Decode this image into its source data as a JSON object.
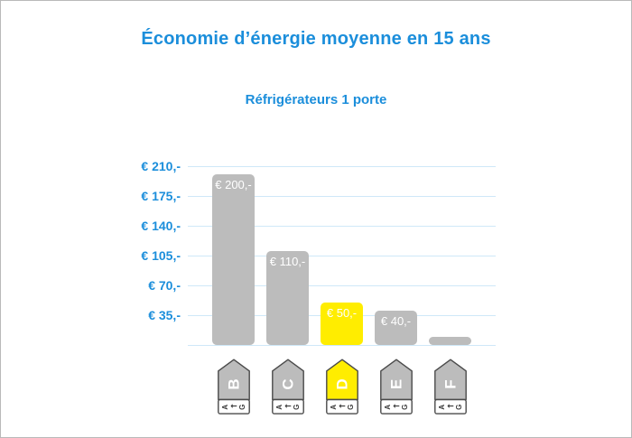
{
  "header": {
    "title": "Économie d’énergie moyenne en 15 ans",
    "subtitle": "Réfrigérateurs 1 porte"
  },
  "colors": {
    "accent_blue": "#1b8edb",
    "gridline_blue": "#cfe8f8",
    "bar_gray": "#bcbcbc",
    "bar_yellow": "#ffed00",
    "bar_label_white": "#ffffff",
    "icon_outline": "#4a4a4a",
    "icon_range_text": "#3a3a3a",
    "canvas_border": "#b9b9b9"
  },
  "chart_data": {
    "type": "bar",
    "title": "Économie d’énergie moyenne en 15 ans",
    "subtitle": "Réfrigérateurs 1 porte",
    "currency": "EUR",
    "categories": [
      "B",
      "C",
      "D",
      "E",
      "F"
    ],
    "values": [
      200,
      110,
      50,
      40,
      10
    ],
    "bar_labels": [
      "€ 200,-",
      "€ 110,-",
      "€ 50,-",
      "€ 40,-",
      ""
    ],
    "highlighted_category": "D",
    "y_ticks": [
      210,
      175,
      140,
      105,
      70,
      35
    ],
    "y_tick_labels": [
      "€ 210,-",
      "€ 175,-",
      "€ 140,-",
      "€ 105,-",
      "€ 70,-",
      "€ 35,-"
    ],
    "ylim": [
      0,
      210
    ],
    "grid": true,
    "legend": "none",
    "x_axis_icons": "eu-energy-class-tag",
    "icon_range": {
      "top_class": "A",
      "arrow": "←",
      "bottom_class": "G"
    }
  }
}
